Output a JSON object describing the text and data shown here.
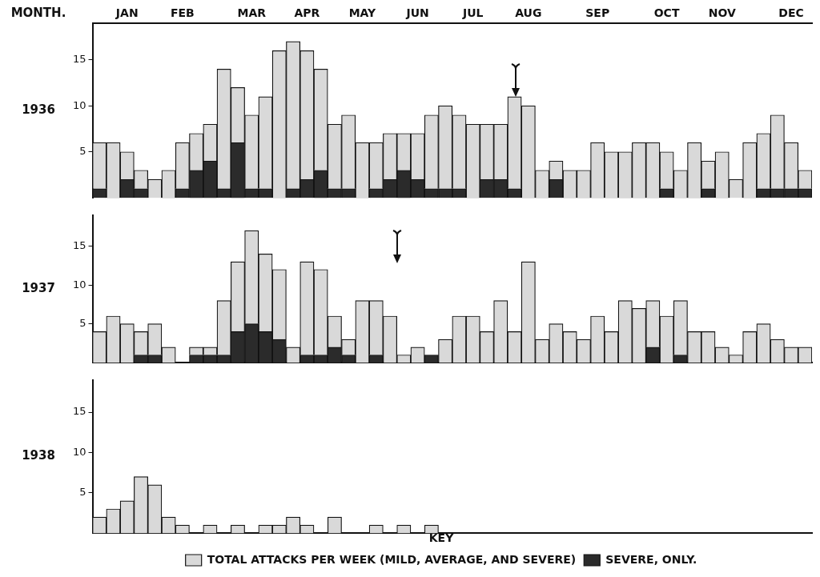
{
  "chart_data": [
    {
      "type": "bar",
      "ylabel": "1936",
      "xlabel": "MONTH.",
      "stacked": true,
      "categories": [
        null,
        null,
        "JAN",
        null,
        null,
        null,
        "FEB",
        null,
        null,
        null,
        null,
        "MAR",
        null,
        null,
        null,
        "APR",
        null,
        null,
        null,
        "MAY",
        null,
        null,
        null,
        "JUN",
        null,
        null,
        null,
        "JUL",
        null,
        null,
        null,
        "AUG",
        null,
        null,
        null,
        null,
        "SEP",
        null,
        null,
        null,
        null,
        "OCT",
        null,
        null,
        null,
        "NOV",
        null,
        null,
        null,
        null,
        "DEC",
        null
      ],
      "ylim": [
        0,
        19
      ],
      "yticks": [
        5,
        10,
        15
      ],
      "grid": false,
      "series": [
        {
          "color": "#2b2b2b",
          "values": [
            1,
            0,
            2,
            1,
            0,
            0,
            1,
            3,
            4,
            1,
            6,
            1,
            1,
            0,
            1,
            2,
            3,
            1,
            1,
            0,
            1,
            2,
            3,
            2,
            1,
            1,
            1,
            0,
            2,
            2,
            1,
            0,
            0,
            2,
            0,
            0,
            0,
            0,
            0,
            0,
            0,
            1,
            0,
            0,
            1,
            0,
            0,
            0,
            1,
            1,
            1,
            1
          ]
        },
        {
          "color": "#d9d9d9",
          "values": [
            5,
            6,
            3,
            2,
            2,
            3,
            5,
            4,
            4,
            13,
            6,
            8,
            10,
            16,
            16,
            14,
            11,
            7,
            8,
            6,
            5,
            5,
            4,
            5,
            8,
            9,
            8,
            8,
            6,
            6,
            10,
            10,
            3,
            2,
            3,
            3,
            6,
            5,
            5,
            6,
            6,
            4,
            3,
            6,
            3,
            5,
            2,
            6,
            6,
            8,
            5,
            2
          ]
        }
      ]
    },
    {
      "type": "bar",
      "ylabel": "1937",
      "stacked": true,
      "categories": [
        null,
        null,
        null,
        null,
        null,
        null,
        null,
        null,
        null,
        null,
        null,
        null,
        null,
        null,
        null,
        null,
        null,
        null,
        null,
        null,
        null,
        null,
        null,
        null,
        null,
        null,
        null,
        null,
        null,
        null,
        null,
        null,
        null,
        null,
        null,
        null,
        null,
        null,
        null,
        null,
        null,
        null,
        null,
        null,
        null,
        null,
        null,
        null,
        null,
        null,
        null,
        null
      ],
      "tick_labels": "y",
      "ylim": [
        0,
        19
      ],
      "yticks": [
        5,
        10,
        15
      ],
      "grid": false,
      "series": [
        {
          "color": "#2b2b2b",
          "values": [
            0,
            0,
            0,
            1,
            1,
            0,
            0,
            1,
            1,
            1,
            4,
            5,
            4,
            3,
            0,
            1,
            1,
            2,
            1,
            0,
            1,
            0,
            0,
            0,
            1,
            0,
            0,
            0,
            0,
            0,
            0,
            0,
            0,
            0,
            0,
            0,
            0,
            0,
            0,
            0,
            2,
            0,
            1,
            0,
            0,
            0,
            0,
            0,
            0,
            0,
            0,
            0
          ]
        },
        {
          "color": "#d9d9d9",
          "values": [
            4,
            6,
            5,
            3,
            4,
            2,
            0,
            1,
            1,
            7,
            9,
            12,
            10,
            9,
            2,
            12,
            11,
            4,
            2,
            8,
            7,
            6,
            1,
            2,
            0,
            3,
            6,
            6,
            4,
            8,
            4,
            13,
            3,
            5,
            4,
            3,
            6,
            4,
            8,
            7,
            6,
            6,
            7,
            4,
            4,
            2,
            1,
            4,
            5,
            3,
            2,
            2
          ]
        }
      ]
    },
    {
      "type": "bar",
      "ylabel": "1938",
      "stacked": true,
      "categories": [
        null,
        null,
        null,
        null,
        null,
        null,
        null,
        null,
        null,
        null,
        null,
        null,
        null,
        null,
        null,
        null,
        null,
        null,
        null,
        null,
        null,
        null,
        null,
        null,
        null,
        null,
        null,
        null,
        null,
        null,
        null,
        null,
        null,
        null,
        null,
        null,
        null,
        null,
        null,
        null,
        null,
        null,
        null,
        null,
        null,
        null,
        null,
        null,
        null,
        null,
        null,
        null
      ],
      "tick_labels": "y",
      "ylim": [
        0,
        19
      ],
      "yticks": [
        5,
        10,
        15
      ],
      "grid": false,
      "legend": "bottom",
      "legend_title": "KEY",
      "series": [
        {
          "name": "SEVERE, ONLY.",
          "color": "#2b2b2b",
          "values": [
            0,
            0,
            0,
            0,
            0,
            0,
            0,
            0,
            0,
            0,
            0,
            0,
            0,
            0,
            0,
            0,
            0,
            0,
            0,
            0,
            0,
            0,
            0,
            0,
            0,
            null,
            null,
            null,
            null,
            null,
            null,
            null,
            null,
            null,
            null,
            null,
            null,
            null,
            null,
            null,
            null,
            null,
            null,
            null,
            null,
            null,
            null,
            null,
            null,
            null,
            null,
            null
          ]
        },
        {
          "name": "TOTAL ATTACKS PER WEEK (MILD, AVERAGE, AND SEVERE)",
          "color": "#d9d9d9",
          "values": [
            2,
            3,
            4,
            7,
            6,
            2,
            1,
            0,
            1,
            0,
            1,
            0,
            1,
            1,
            2,
            1,
            0,
            2,
            0,
            0,
            1,
            0,
            1,
            0,
            1,
            null,
            null,
            null,
            null,
            null,
            null,
            null,
            null,
            null,
            null,
            null,
            null,
            null,
            null,
            null,
            null,
            null,
            null,
            null,
            null,
            null,
            null,
            null,
            null,
            null,
            null,
            null
          ]
        }
      ]
    }
  ]
}
